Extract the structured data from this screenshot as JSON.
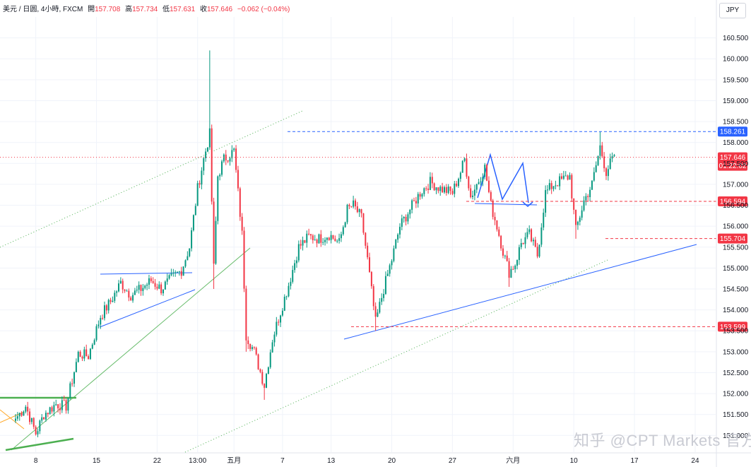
{
  "header": {
    "symbol": "美元 / 日圆, 4小時, FXCM",
    "open_label": "開",
    "open": "157.708",
    "high_label": "高",
    "high": "157.734",
    "low_label": "低",
    "low": "157.631",
    "close_label": "收",
    "close": "157.646",
    "change": "−0.062 (−0.04%)"
  },
  "currency_button": "JPY",
  "watermark": "知乎 @CPT Markets 官方",
  "chart_data": {
    "type": "candlestick",
    "symbol": "USDJPY",
    "timeframe": "4h",
    "ylim": [
      150.6,
      161.0
    ],
    "y_ticks": [
      "160.500",
      "160.000",
      "159.500",
      "159.000",
      "158.500",
      "158.000",
      "157.500",
      "157.000",
      "156.500",
      "156.000",
      "155.500",
      "155.000",
      "154.500",
      "154.000",
      "153.500",
      "153.000",
      "152.500",
      "152.000",
      "151.500",
      "151.000"
    ],
    "x_ticks": [
      {
        "label": "8",
        "idx": 10
      },
      {
        "label": "15",
        "idx": 40
      },
      {
        "label": "22",
        "idx": 70
      },
      {
        "label": "13:00",
        "idx": 90
      },
      {
        "label": "五月",
        "idx": 108
      },
      {
        "label": "7",
        "idx": 132
      },
      {
        "label": "13",
        "idx": 156
      },
      {
        "label": "20",
        "idx": 186
      },
      {
        "label": "27",
        "idx": 216
      },
      {
        "label": "六月",
        "idx": 246
      },
      {
        "label": "10",
        "idx": 276
      },
      {
        "label": "17",
        "idx": 306
      },
      {
        "label": "24",
        "idx": 336
      }
    ],
    "price_labels": [
      {
        "price": 158.261,
        "text": "158.261",
        "color": "#2962ff",
        "style": "dashed"
      },
      {
        "price": 157.646,
        "text": "157.646",
        "sub": "01:22:02",
        "color": "#f23645",
        "style": "dotted"
      },
      {
        "price": 156.594,
        "text": "156.594",
        "color": "#f23645",
        "style": "dashed"
      },
      {
        "price": 155.704,
        "text": "155.704",
        "color": "#f23645",
        "style": "dashed"
      },
      {
        "price": 153.599,
        "text": "153.599",
        "color": "#f23645",
        "style": "dashed"
      }
    ],
    "up_color": "#089981",
    "down_color": "#f23645",
    "anchors": [
      [
        0,
        151.4
      ],
      [
        5,
        151.7
      ],
      [
        10,
        151.05
      ],
      [
        14,
        151.5
      ],
      [
        20,
        151.75
      ],
      [
        25,
        151.7
      ],
      [
        31,
        152.95
      ],
      [
        36,
        152.9
      ],
      [
        42,
        153.85
      ],
      [
        47,
        154.2
      ],
      [
        52,
        154.65
      ],
      [
        57,
        154.35
      ],
      [
        62,
        154.5
      ],
      [
        67,
        154.7
      ],
      [
        72,
        154.5
      ],
      [
        77,
        154.75
      ],
      [
        82,
        154.95
      ],
      [
        86,
        155.5
      ],
      [
        90,
        156.9
      ],
      [
        93,
        157.6
      ],
      [
        96,
        158.2
      ],
      [
        98,
        155.0
      ],
      [
        100,
        157.2
      ],
      [
        103,
        157.6
      ],
      [
        108,
        157.8
      ],
      [
        112,
        155.8
      ],
      [
        114,
        153.4
      ],
      [
        118,
        153.0
      ],
      [
        123,
        152.2
      ],
      [
        127,
        153.3
      ],
      [
        130,
        153.8
      ],
      [
        135,
        154.6
      ],
      [
        140,
        155.5
      ],
      [
        145,
        155.75
      ],
      [
        150,
        155.7
      ],
      [
        155,
        155.8
      ],
      [
        160,
        155.6
      ],
      [
        164,
        156.4
      ],
      [
        167,
        156.5
      ],
      [
        171,
        156.2
      ],
      [
        174,
        155.2
      ],
      [
        178,
        153.7
      ],
      [
        182,
        154.5
      ],
      [
        186,
        155.2
      ],
      [
        190,
        156.0
      ],
      [
        195,
        156.4
      ],
      [
        200,
        156.8
      ],
      [
        205,
        157.05
      ],
      [
        210,
        156.9
      ],
      [
        216,
        156.8
      ],
      [
        220,
        157.3
      ],
      [
        222,
        157.6
      ],
      [
        225,
        156.7
      ],
      [
        229,
        157.1
      ],
      [
        232,
        157.4
      ],
      [
        235,
        156.5
      ],
      [
        238,
        156.0
      ],
      [
        241,
        155.4
      ],
      [
        244,
        154.9
      ],
      [
        247,
        155.1
      ],
      [
        250,
        155.6
      ],
      [
        254,
        155.8
      ],
      [
        258,
        155.3
      ],
      [
        262,
        156.8
      ],
      [
        266,
        157.0
      ],
      [
        270,
        157.1
      ],
      [
        274,
        157.2
      ],
      [
        277,
        155.9
      ],
      [
        281,
        156.6
      ],
      [
        285,
        157.0
      ],
      [
        289,
        157.9
      ],
      [
        292,
        157.3
      ],
      [
        296,
        157.7
      ]
    ],
    "spikes": [
      {
        "idx": 96,
        "high": 160.2
      },
      {
        "idx": 98,
        "low": 154.5
      },
      {
        "idx": 114,
        "low": 153.0
      },
      {
        "idx": 123,
        "low": 151.85
      },
      {
        "idx": 178,
        "low": 153.5
      },
      {
        "idx": 244,
        "low": 154.55
      },
      {
        "idx": 277,
        "low": 155.7
      },
      {
        "idx": 289,
        "high": 158.26
      }
    ]
  }
}
